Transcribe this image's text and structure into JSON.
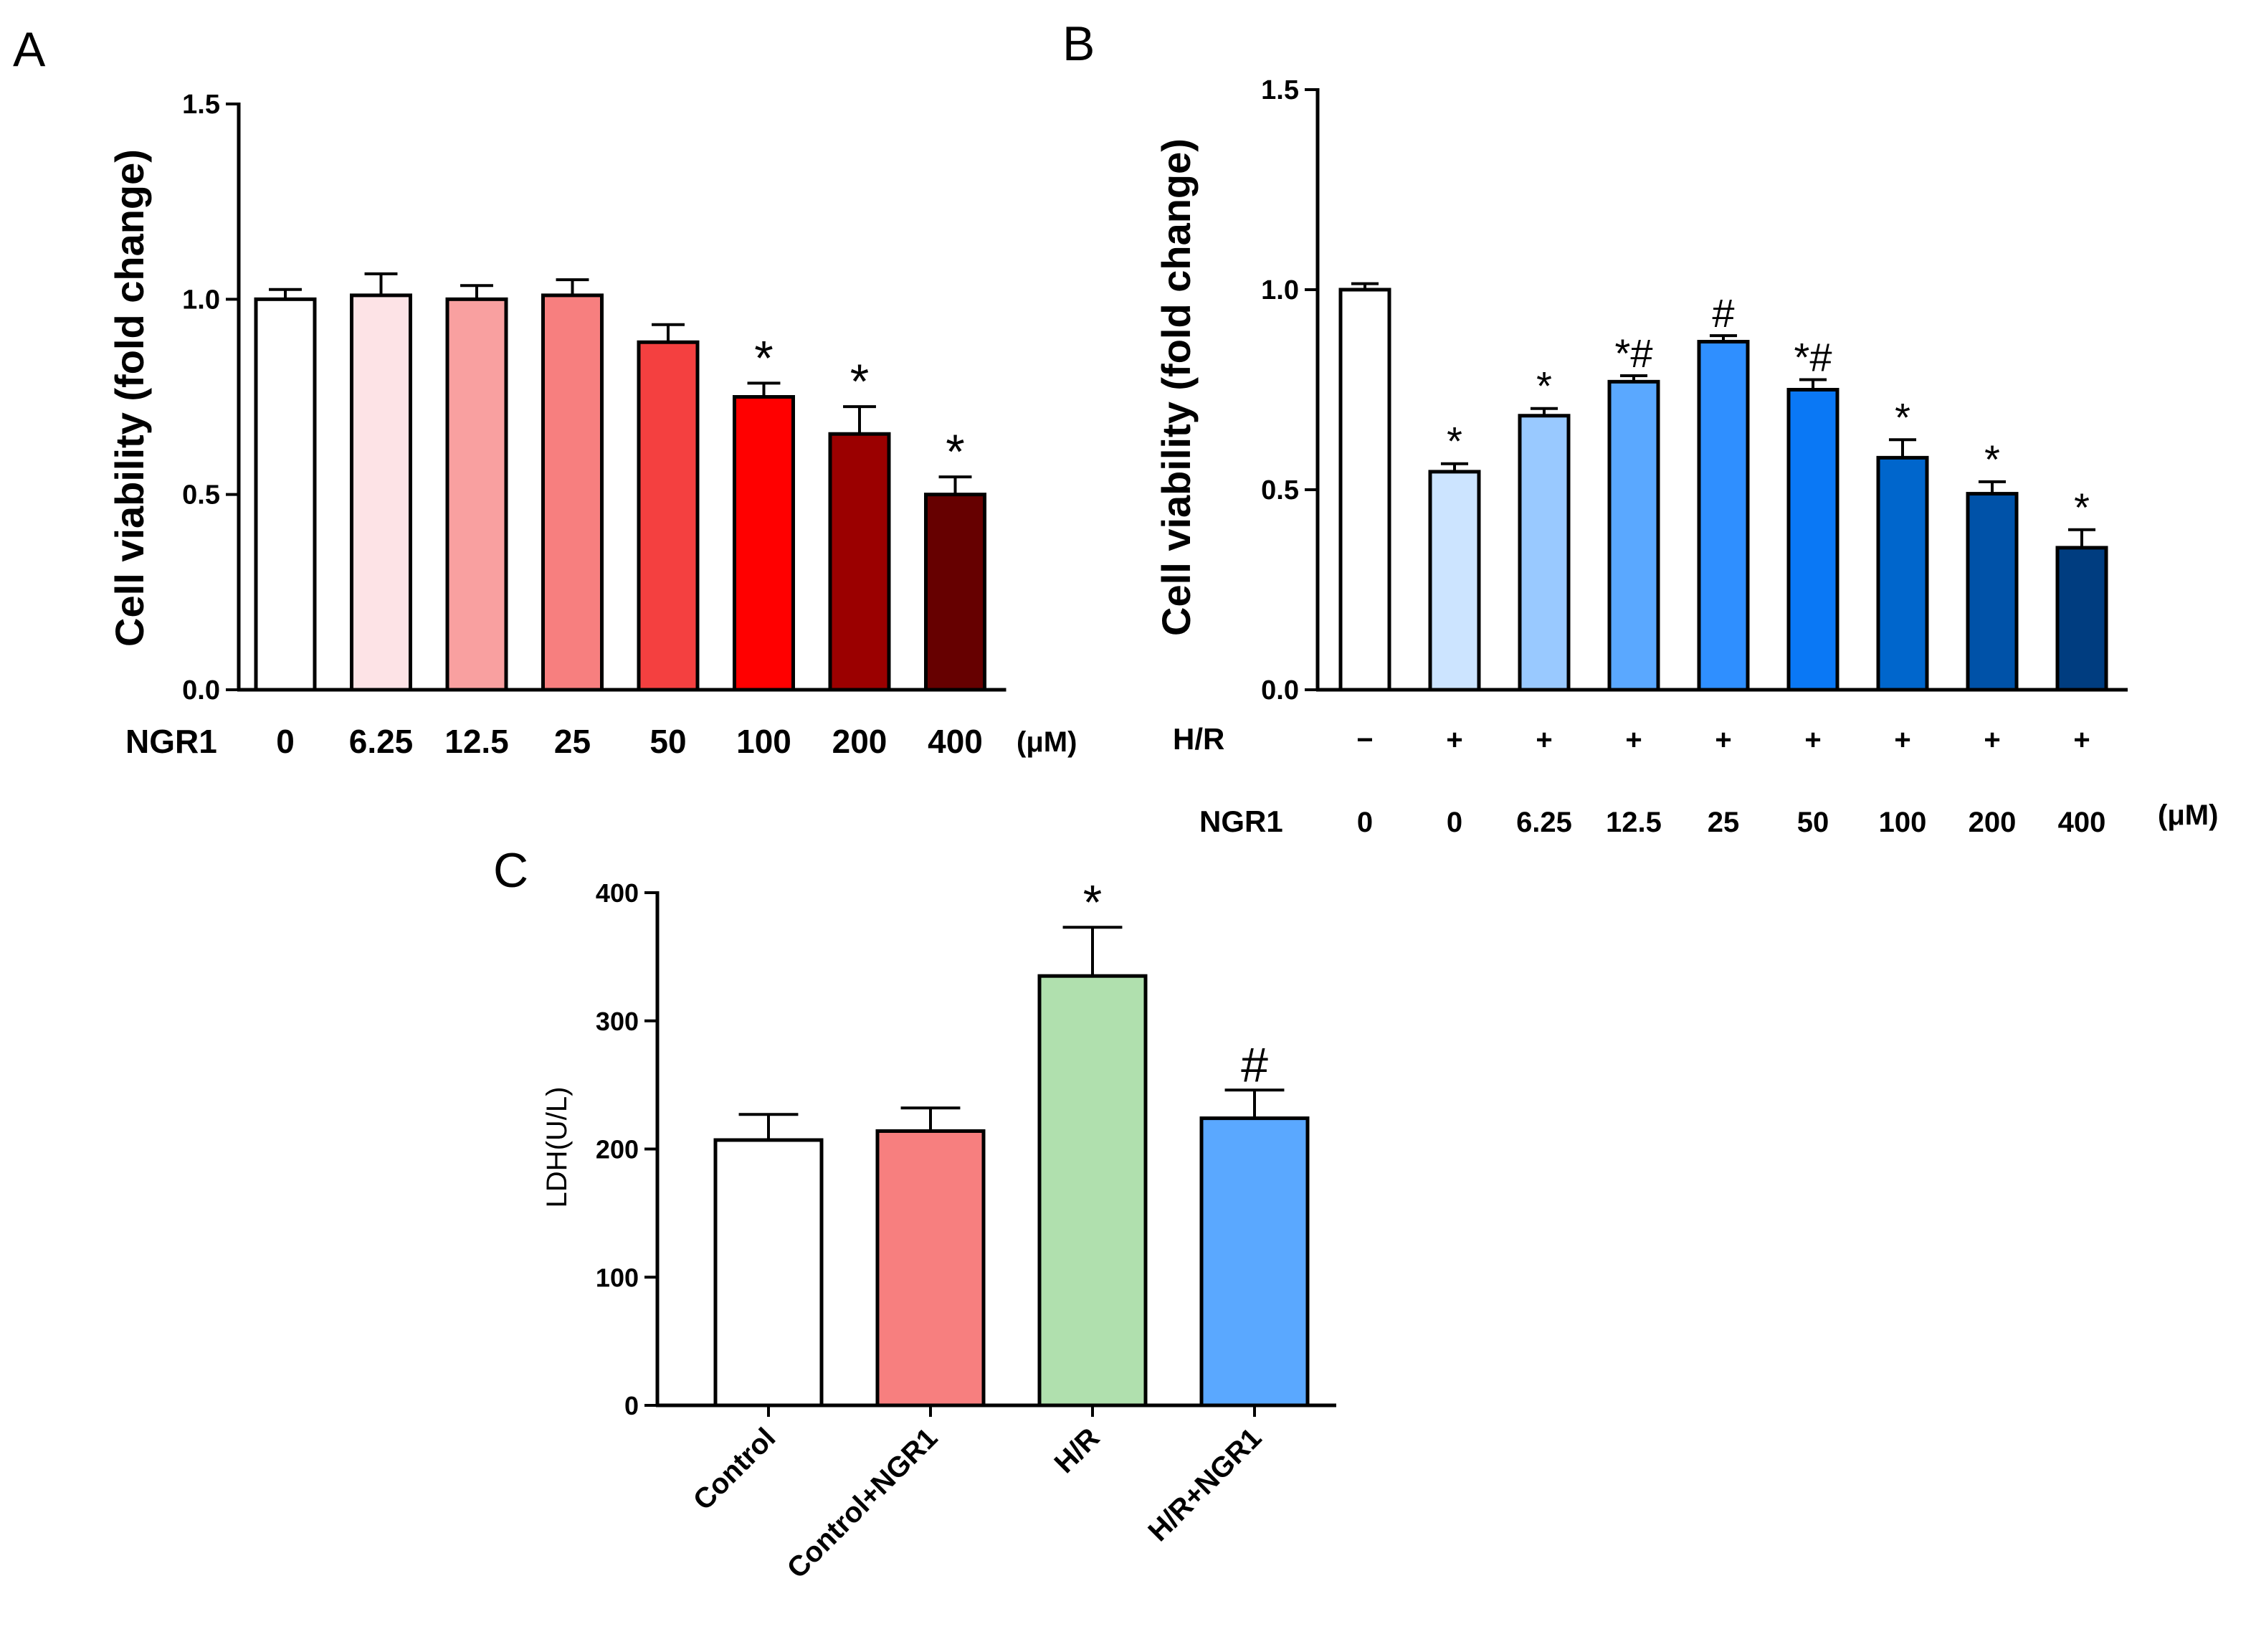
{
  "panels": [
    {
      "letter": "A"
    },
    {
      "letter": "B"
    },
    {
      "letter": "C"
    }
  ],
  "chart_data": [
    {
      "type": "bar",
      "panel": "A",
      "ylabel": "Cell viability (fold change)",
      "ylim": [
        0,
        1.5
      ],
      "yticks": [
        "0.0",
        "0.5",
        "1.0",
        "1.5"
      ],
      "row_labels": [
        {
          "label": "NGR1",
          "unit": "(μM)"
        }
      ],
      "categories": [
        "0",
        "6.25",
        "12.5",
        "25",
        "50",
        "100",
        "200",
        "400"
      ],
      "values": [
        1.0,
        1.01,
        1.0,
        1.01,
        0.89,
        0.75,
        0.655,
        0.5
      ],
      "errors": [
        0.025,
        0.055,
        0.035,
        0.04,
        0.045,
        0.035,
        0.07,
        0.045
      ],
      "significance": [
        "",
        "",
        "",
        "",
        "",
        "*",
        "*",
        "*"
      ],
      "colors": [
        "#ffffff",
        "#fde3e6",
        "#f9a0a0",
        "#f77f7f",
        "#f44040",
        "#ff0000",
        "#9b0000",
        "#660000"
      ]
    },
    {
      "type": "bar",
      "panel": "B",
      "ylabel": "Cell viability (fold change)",
      "ylim": [
        0,
        1.5
      ],
      "yticks": [
        "0.0",
        "0.5",
        "1.0",
        "1.5"
      ],
      "row_labels": [
        {
          "label": "H/R",
          "values": [
            "−",
            "+",
            "+",
            "+",
            "+",
            "+",
            "+",
            "+",
            "+"
          ]
        },
        {
          "label": "NGR1",
          "unit": "(μM)"
        }
      ],
      "categories": [
        "0",
        "0",
        "6.25",
        "12.5",
        "25",
        "50",
        "100",
        "200",
        "400"
      ],
      "values": [
        1.0,
        0.545,
        0.685,
        0.77,
        0.87,
        0.75,
        0.58,
        0.49,
        0.355
      ],
      "errors": [
        0.015,
        0.02,
        0.018,
        0.015,
        0.015,
        0.025,
        0.045,
        0.03,
        0.045
      ],
      "significance": [
        "",
        "*",
        "*",
        "*#",
        "#",
        "*#",
        "*",
        "*",
        "*"
      ],
      "colors": [
        "#ffffff",
        "#cce4ff",
        "#99c9ff",
        "#5aa8ff",
        "#2f8fff",
        "#0a78f5",
        "#0066cc",
        "#0052a8",
        "#003d80"
      ]
    },
    {
      "type": "bar",
      "panel": "C",
      "ylabel": "LDH(U/L)",
      "ylim": [
        0,
        400
      ],
      "yticks": [
        "0",
        "100",
        "200",
        "300",
        "400"
      ],
      "categories": [
        "Control",
        "Control+NGR1",
        "H/R",
        "H/R+NGR1"
      ],
      "values": [
        207,
        214,
        335,
        224
      ],
      "errors": [
        20,
        18,
        38,
        22
      ],
      "significance": [
        "",
        "",
        "*",
        "#"
      ],
      "colors": [
        "#ffffff",
        "#f77f7f",
        "#b0e0ae",
        "#5aa8ff"
      ]
    }
  ]
}
